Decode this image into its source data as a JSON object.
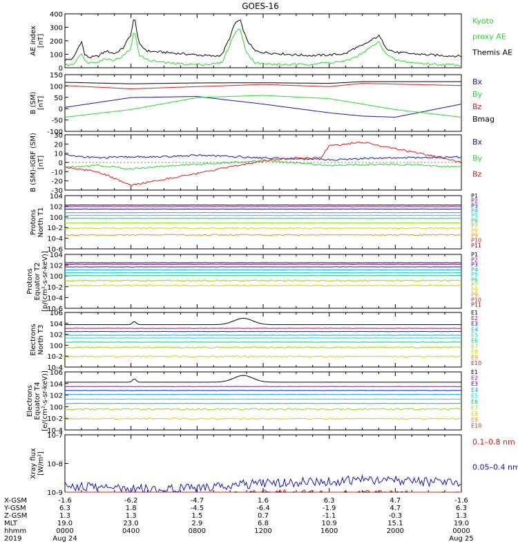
{
  "title": "GOES-16",
  "x_axis": {
    "rows": [
      {
        "label": "X-GSM",
        "values": [
          "-1.6",
          "-6.2",
          "-4.7",
          "1.6",
          "6.3",
          "4.7",
          "-1.6"
        ]
      },
      {
        "label": "Y-GSM",
        "values": [
          "6.3",
          "1.8",
          "-4.5",
          "-6.4",
          "-1.9",
          "4.7",
          "6.3"
        ]
      },
      {
        "label": "Z-GSM",
        "values": [
          "1.3",
          "1.3",
          "1.5",
          "0.7",
          "-1.1",
          "-0.3",
          "1.3"
        ]
      },
      {
        "label": "MLT",
        "values": [
          "19.0",
          "23.0",
          "2.9",
          "6.8",
          "10.9",
          "15.1",
          "19.0"
        ]
      },
      {
        "label": "hhmm",
        "values": [
          "0000",
          "0400",
          "0800",
          "1200",
          "1600",
          "2000",
          "0000"
        ]
      },
      {
        "label": "2019",
        "values": [
          "Aug 24",
          "",
          "",
          "",
          "",
          "",
          "Aug 25"
        ]
      }
    ]
  },
  "colors": {
    "black": "#000000",
    "green": "#22dd22",
    "red": "#ee1111",
    "blue": "#1111cc",
    "channels": [
      "#000000",
      "#a000a0",
      "#1111cc",
      "#00a8ff",
      "#00d8d8",
      "#00cc66",
      "#88dd00",
      "#ddcc00",
      "#ff8800",
      "#ee1111",
      "#aa0000"
    ]
  },
  "panels": [
    {
      "id": "ae",
      "ylabel": [
        "AE index",
        "[nT]"
      ],
      "ticks": [
        "0",
        "100",
        "200",
        "300",
        "400"
      ],
      "legend": [
        {
          "text": "Kyoto",
          "color": "#22dd22"
        },
        {
          "text": "proxy AE",
          "color": "#22dd22"
        },
        {
          "text": "Themis AE",
          "color": "#000000"
        }
      ]
    },
    {
      "id": "bsm",
      "ylabel": [
        "B (SM)",
        "[nT]"
      ],
      "ticks": [
        "-100",
        "-50",
        "0",
        "50",
        "100",
        "150"
      ],
      "legend": [
        {
          "text": "Bx",
          "color": "#1111cc"
        },
        {
          "text": "By",
          "color": "#22dd22"
        },
        {
          "text": "Bz",
          "color": "#ee1111"
        },
        {
          "text": "Bmag",
          "color": "#000000"
        }
      ]
    },
    {
      "id": "bigrf",
      "ylabel": [
        "B (SM)-IGRF (SM)",
        "[nT]"
      ],
      "ticks": [
        "-30",
        "-20",
        "-10",
        "0",
        "10",
        "20",
        "30"
      ],
      "legend": [
        {
          "text": "Bx",
          "color": "#1111cc"
        },
        {
          "text": "By",
          "color": "#22dd22"
        },
        {
          "text": "Bz",
          "color": "#ee1111"
        }
      ]
    },
    {
      "id": "pt1",
      "ylabel": [
        "Protons",
        "North T1"
      ],
      "ticks": [
        "10-6",
        "10-4",
        "10-2",
        "100",
        "102",
        "104"
      ],
      "legend": [
        "P1",
        "P2",
        "P3",
        "P4",
        "P5",
        "P6",
        "P7",
        "P8",
        "P9",
        "P10",
        "P11"
      ]
    },
    {
      "id": "pt2",
      "ylabel": [
        "Protons",
        "Equator T2",
        "[p/(cm²-s-sr-keV)]"
      ],
      "ticks": [
        "10-6",
        "10-4",
        "10-2",
        "100",
        "102",
        "104"
      ],
      "legend": [
        "P1",
        "P2",
        "P3",
        "P4",
        "P5",
        "P6",
        "P7",
        "P8",
        "P9",
        "P10",
        "P11"
      ]
    },
    {
      "id": "et3",
      "ylabel": [
        "Electrons",
        "North T3"
      ],
      "ticks": [
        "10-4",
        "10-2",
        "100",
        "102",
        "104",
        "106"
      ],
      "legend": [
        "E1",
        "E2",
        "E3",
        "E4",
        "E5",
        "E6",
        "E7",
        "E8",
        "E9",
        "E10"
      ]
    },
    {
      "id": "et4",
      "ylabel": [
        "Electrons",
        "Equator T4",
        "[e/(cm²-s-sr-keV)]"
      ],
      "ticks": [
        "10-4",
        "10-2",
        "100",
        "102",
        "104",
        "106"
      ],
      "legend": [
        "E1",
        "E2",
        "E3",
        "E4",
        "E5",
        "E6",
        "E7",
        "E8",
        "E9",
        "E10"
      ]
    },
    {
      "id": "xray",
      "ylabel": [
        "Xray flux",
        "[W/m²]"
      ],
      "ticks": [
        "10-9",
        "10-8",
        "10-7"
      ],
      "legend": [
        {
          "text": "0.1–0.8 nm",
          "color": "#ee1111"
        },
        {
          "text": "0.05–0.4 nm",
          "color": "#1111cc"
        }
      ]
    }
  ],
  "chart_data": {
    "type": "line",
    "title": "GOES-16",
    "x_range_hours": [
      0,
      24
    ],
    "x_ticks_hours": [
      0,
      4,
      8,
      12,
      16,
      20,
      24
    ],
    "series": [
      {
        "panel": "ae",
        "name": "Themis AE",
        "color": "#000000",
        "x": [
          0,
          0.5,
          1,
          1.2,
          1.5,
          2,
          2.5,
          3,
          3.5,
          4,
          4.2,
          4.5,
          5,
          6,
          7,
          8,
          9,
          9.5,
          10,
          10.3,
          10.6,
          11,
          11.5,
          12,
          13,
          14,
          15,
          16,
          17,
          17.5,
          18,
          18.5,
          19,
          19.5,
          20,
          21,
          22,
          23,
          24
        ],
        "y": [
          60,
          70,
          210,
          100,
          80,
          90,
          130,
          110,
          150,
          260,
          400,
          180,
          130,
          120,
          110,
          100,
          90,
          100,
          240,
          350,
          370,
          220,
          130,
          120,
          110,
          100,
          95,
          100,
          110,
          150,
          170,
          210,
          250,
          150,
          120,
          110,
          100,
          95,
          90
        ]
      },
      {
        "panel": "ae",
        "name": "Kyoto proxy AE",
        "color": "#22dd22",
        "x": [
          0,
          0.5,
          1,
          1.2,
          1.5,
          2,
          2.5,
          3,
          3.5,
          4,
          4.2,
          4.5,
          5,
          6,
          7,
          8,
          9,
          9.5,
          10,
          10.3,
          10.6,
          11,
          11.5,
          12,
          13,
          14,
          15,
          16,
          17,
          17.5,
          18,
          18.5,
          19,
          19.5,
          20,
          21,
          22,
          23,
          24
        ],
        "y": [
          20,
          25,
          120,
          50,
          40,
          50,
          70,
          60,
          90,
          150,
          300,
          100,
          60,
          40,
          30,
          25,
          30,
          40,
          180,
          280,
          300,
          120,
          40,
          30,
          25,
          25,
          30,
          40,
          50,
          80,
          110,
          160,
          200,
          100,
          60,
          40,
          30,
          25,
          20
        ]
      },
      {
        "panel": "bsm",
        "name": "Bmag",
        "color": "#000000",
        "x": [
          0,
          4,
          8,
          12,
          16,
          18,
          24
        ],
        "y": [
          115,
          108,
          112,
          113,
          110,
          118,
          118
        ]
      },
      {
        "panel": "bsm",
        "name": "Bz",
        "color": "#ee1111",
        "x": [
          0,
          4,
          8,
          12,
          16,
          18,
          24
        ],
        "y": [
          100,
          85,
          95,
          105,
          95,
          110,
          100
        ]
      },
      {
        "panel": "bsm",
        "name": "Bx",
        "color": "#1111cc",
        "x": [
          0,
          4,
          8,
          12,
          16,
          18,
          20,
          24
        ],
        "y": [
          0,
          45,
          50,
          15,
          -25,
          -40,
          -45,
          15
        ]
      },
      {
        "panel": "bsm",
        "name": "By",
        "color": "#22dd22",
        "x": [
          0,
          4,
          8,
          12,
          16,
          20,
          24
        ],
        "y": [
          -45,
          -10,
          45,
          55,
          40,
          -10,
          -45
        ]
      },
      {
        "panel": "bigrf",
        "name": "Bx",
        "color": "#1111cc",
        "x": [
          0,
          2,
          4,
          6,
          8,
          12,
          16,
          20,
          24
        ],
        "y": [
          8,
          5,
          6,
          6,
          8,
          5,
          3,
          5,
          6
        ]
      },
      {
        "panel": "bigrf",
        "name": "By",
        "color": "#22dd22",
        "x": [
          0,
          2,
          4,
          6,
          8,
          12,
          16,
          20,
          24
        ],
        "y": [
          -5,
          -3,
          -7,
          -4,
          -2,
          2,
          -3,
          -2,
          -5
        ]
      },
      {
        "panel": "bigrf",
        "name": "Bz",
        "color": "#ee1111",
        "x": [
          0,
          2,
          4,
          6,
          8,
          10,
          12,
          14,
          15.5,
          16,
          18,
          20,
          22,
          24
        ],
        "y": [
          -5,
          -10,
          -25,
          -18,
          -12,
          -5,
          2,
          5,
          5,
          18,
          22,
          15,
          8,
          0
        ]
      },
      {
        "panel": "xray",
        "name": "0.05–0.4 nm",
        "color": "#1111cc",
        "x": [
          0,
          6,
          12,
          18,
          24
        ],
        "y": [
          1.2e-09,
          9e-10,
          1.5e-09,
          2e-09,
          1.6e-09
        ]
      },
      {
        "panel": "xray",
        "name": "0.1–0.8 nm",
        "color": "#ee1111",
        "x": [
          0,
          6,
          12,
          18,
          24
        ],
        "y": [
          5e-10,
          4e-10,
          6e-10,
          6e-10,
          5e-10
        ]
      }
    ],
    "levels": {
      "pt1": [
        300,
        150,
        50,
        10,
        3,
        0.8,
        0.1,
        0.01,
        0.0005
      ],
      "pt2": [
        400,
        200,
        60,
        15,
        4,
        1,
        0.1,
        0.01
      ],
      "et3": [
        10000,
        2000,
        500,
        100,
        30,
        5,
        0.5,
        0.01
      ],
      "et4": [
        30000,
        5000,
        1000,
        200,
        30,
        5,
        0.5,
        0.01
      ]
    }
  }
}
